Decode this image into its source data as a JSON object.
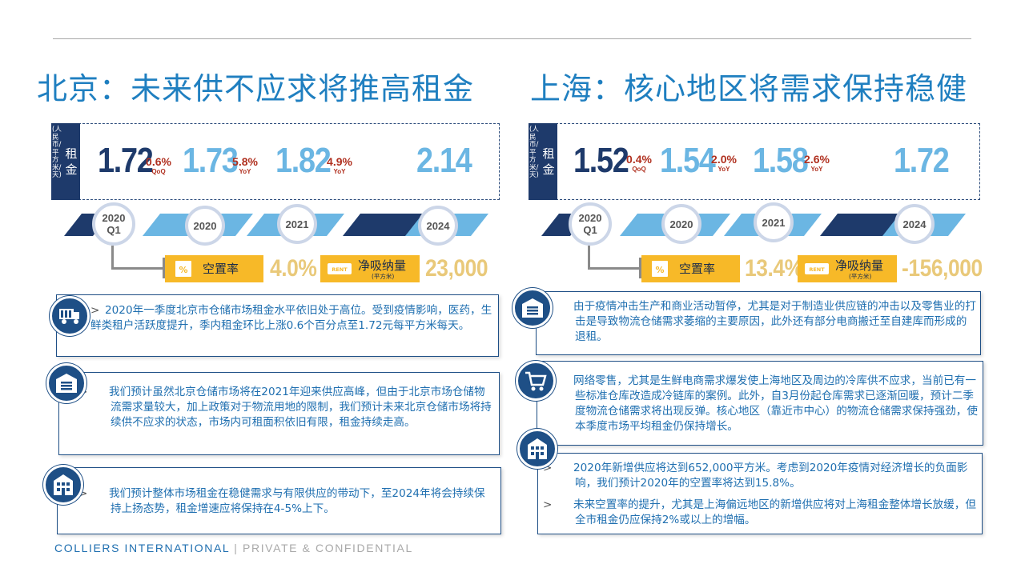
{
  "header": {
    "left_title": "北京：未来供不应求将推高租金",
    "right_title": "上海：核心地区将需求保持稳健"
  },
  "beijing": {
    "rent_label": "租金",
    "rent_unit": "(人民币/平方米/天)",
    "values": [
      {
        "value": "1.72",
        "change": "0.6%",
        "change_label": "QoQ"
      },
      {
        "value": "1.73",
        "change": "5.8%",
        "change_label": "YoY"
      },
      {
        "value": "1.82",
        "change": "4.9%",
        "change_label": "YoY"
      },
      {
        "value": "2.14",
        "change": "",
        "change_label": ""
      }
    ],
    "timeline": [
      {
        "label": "2020 Q1"
      },
      {
        "label": "2020"
      },
      {
        "label": "2021"
      },
      {
        "label": "2024"
      }
    ],
    "vacancy_label": "空置率",
    "vacancy_value": "4.0%",
    "absorption_label": "净吸纳量",
    "absorption_unit": "(平方米)",
    "absorption_value": "23,000",
    "notes": [
      "2020年一季度北京市仓储市场租金水平依旧处于高位。受到疫情影响，医药，生鲜类租户活跃度提升，季内租金环比上涨0.6个百分点至1.72元每平方米每天。",
      "我们预计虽然北京仓储市场将在2021年迎来供应高峰，但由于北京市场仓储物流需求量较大，加上政策对于物流用地的限制，我们预计未来北京仓储市场将持续供不应求的状态，市场内可租面积依旧有限，租金持续走高。",
      "我们预计整体市场租金在稳健需求与有限供应的带动下，至2024年将会持续保持上扬态势，租金增速应将保持在4-5%上下。"
    ]
  },
  "shanghai": {
    "rent_label": "租金",
    "rent_unit": "(人民币/平方米/天)",
    "values": [
      {
        "value": "1.52",
        "change": "0.4%",
        "change_label": "QoQ"
      },
      {
        "value": "1.54",
        "change": "2.0%",
        "change_label": "YoY"
      },
      {
        "value": "1.58",
        "change": "2.6%",
        "change_label": "YoY"
      },
      {
        "value": "1.72",
        "change": "",
        "change_label": ""
      }
    ],
    "timeline": [
      {
        "label": "2020 Q1"
      },
      {
        "label": "2020"
      },
      {
        "label": "2021"
      },
      {
        "label": "2024"
      }
    ],
    "vacancy_label": "空置率",
    "vacancy_value": "13.4%",
    "absorption_label": "净吸纳量",
    "absorption_unit": "(平方米)",
    "absorption_value": "-156,000",
    "notes": [
      "由于疫情冲击生产和商业活动暂停，尤其是对于制造业供应链的冲击以及零售业的打击是导致物流仓储需求萎缩的主要原因，此外还有部分电商搬迁至自建库而形成的退租。",
      "网络零售，尤其是生鲜电商需求爆发使上海地区及周边的冷库供不应求，当前已有一些标准仓库改造成冷链库的案例。此外，自3月份起仓库需求已逐渐回暖，预计二季度物流仓储需求将出现反弹。核心地区（靠近市中心）的物流仓储需求保持强劲，使本季度市场平均租金仍保持增长。",
      "2020年新增供应将达到652,000平方米。考虑到2020年疫情对经济增长的负面影响，我们预计2020年的空置率将达到15.8%。",
      "未来空置率的提升，尤其是上海偏远地区的新增供应将对上海租金整体增长放缓，但全市租金仍应保持2%或以上的增幅。"
    ]
  },
  "footer": {
    "brand": "COLLIERS INTERNATIONAL",
    "separator": "|",
    "confidential": "PRIVATE & CONFIDENTIAL"
  },
  "colors": {
    "title_blue": "#1f7fc0",
    "navy": "#1e3a6b",
    "light_blue": "#6bb6e3",
    "change_red": "#b0301f",
    "yellow": "#f7b928",
    "gold": "#e9c97a"
  }
}
